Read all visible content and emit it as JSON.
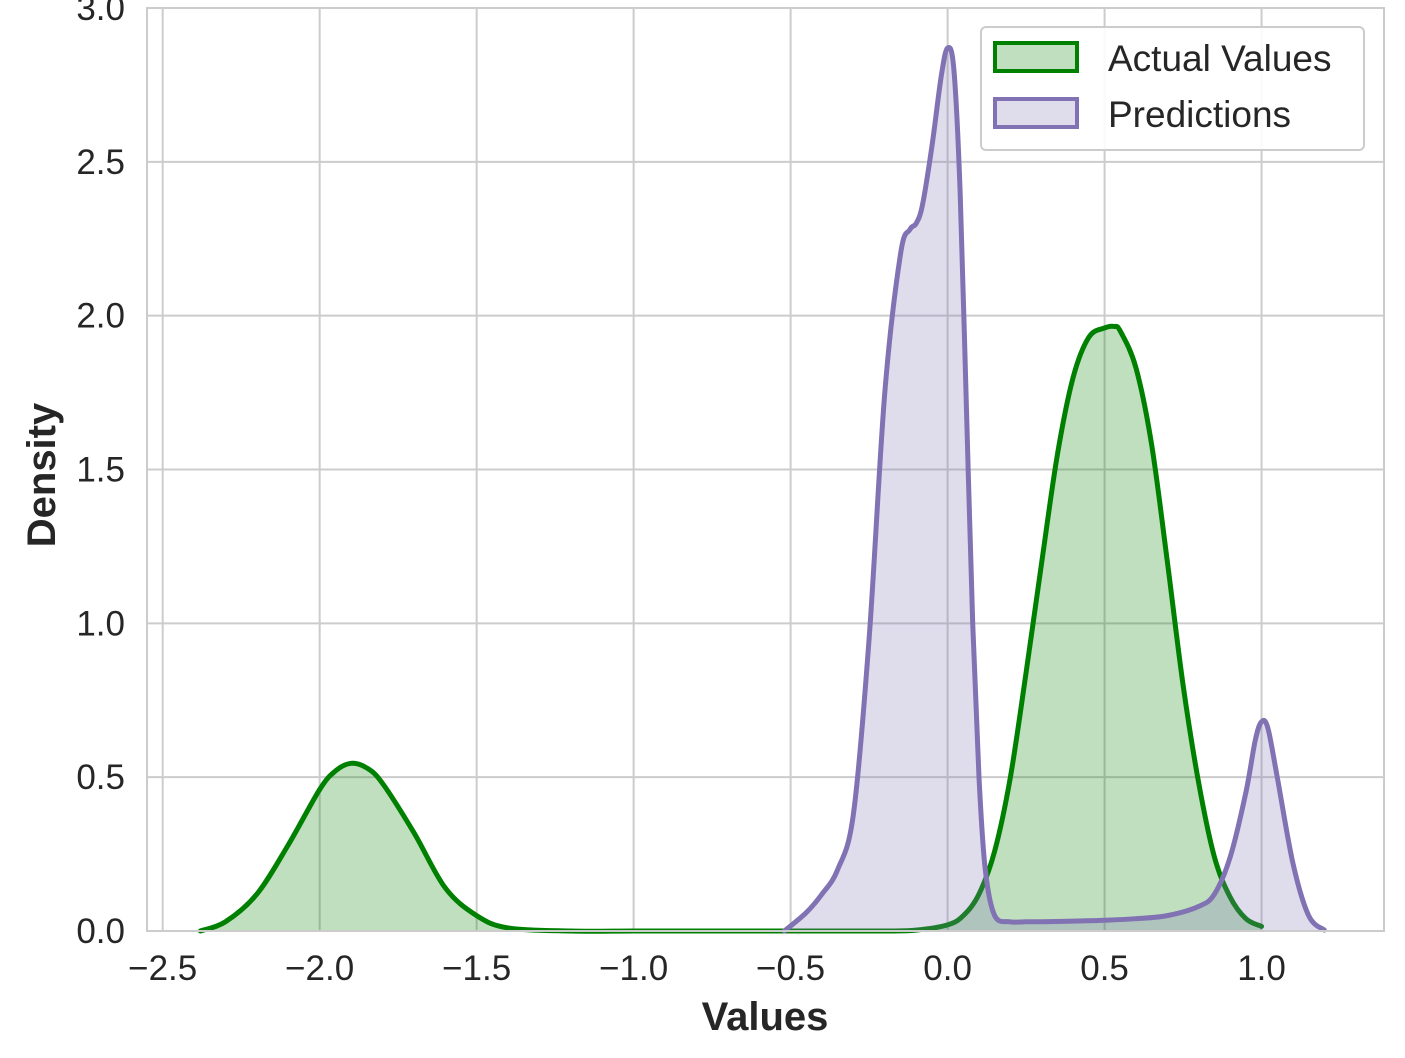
{
  "chart_data": {
    "type": "area",
    "title": "",
    "xlabel": "Values",
    "ylabel": "Density",
    "xlim": [
      -2.55,
      1.39
    ],
    "ylim": [
      0,
      3.0
    ],
    "xticks": [
      -2.5,
      -2.0,
      -1.5,
      -1.0,
      -0.5,
      0.0,
      0.5,
      1.0
    ],
    "xtick_labels": [
      "−2.5",
      "−2.0",
      "−1.5",
      "−1.0",
      "−0.5",
      "0.0",
      "0.5",
      "1.0"
    ],
    "yticks": [
      0.0,
      0.5,
      1.0,
      1.5,
      2.0,
      2.5,
      3.0
    ],
    "ytick_labels": [
      "0.0",
      "0.5",
      "1.0",
      "1.5",
      "2.0",
      "2.5",
      "3.0"
    ],
    "grid": true,
    "legend_position": "top-right",
    "series": [
      {
        "name": "Actual Values",
        "color": "#008000",
        "fill": "rgba(0,128,0,0.25)",
        "x": [
          -2.38,
          -2.3,
          -2.2,
          -2.1,
          -2.0,
          -1.95,
          -1.9,
          -1.85,
          -1.8,
          -1.7,
          -1.6,
          -1.5,
          -1.4,
          -1.2,
          -1.0,
          -0.8,
          -0.6,
          -0.4,
          -0.2,
          -0.1,
          0.0,
          0.05,
          0.1,
          0.15,
          0.2,
          0.25,
          0.3,
          0.35,
          0.4,
          0.45,
          0.5,
          0.53,
          0.55,
          0.6,
          0.65,
          0.7,
          0.75,
          0.8,
          0.85,
          0.9,
          0.95,
          1.0
        ],
        "y": [
          0.0,
          0.03,
          0.12,
          0.28,
          0.46,
          0.52,
          0.545,
          0.53,
          0.48,
          0.32,
          0.14,
          0.05,
          0.01,
          0.0,
          0.0,
          0.0,
          0.0,
          0.0,
          0.0,
          0.003,
          0.02,
          0.05,
          0.12,
          0.26,
          0.5,
          0.84,
          1.2,
          1.55,
          1.8,
          1.93,
          1.96,
          1.965,
          1.95,
          1.83,
          1.58,
          1.2,
          0.8,
          0.48,
          0.24,
          0.11,
          0.04,
          0.015
        ]
      },
      {
        "name": "Predictions",
        "color": "#8172B3",
        "fill": "rgba(129,114,179,0.25)",
        "x": [
          -0.52,
          -0.45,
          -0.4,
          -0.35,
          -0.3,
          -0.25,
          -0.2,
          -0.15,
          -0.12,
          -0.1,
          -0.08,
          -0.05,
          -0.02,
          0.0,
          0.02,
          0.04,
          0.06,
          0.08,
          0.1,
          0.12,
          0.15,
          0.2,
          0.25,
          0.3,
          0.4,
          0.5,
          0.6,
          0.7,
          0.8,
          0.85,
          0.9,
          0.95,
          0.98,
          1.0,
          1.02,
          1.05,
          1.1,
          1.15,
          1.2
        ],
        "y": [
          0.0,
          0.06,
          0.12,
          0.2,
          0.38,
          0.95,
          1.75,
          2.2,
          2.28,
          2.3,
          2.36,
          2.55,
          2.78,
          2.87,
          2.8,
          2.4,
          1.7,
          1.0,
          0.5,
          0.2,
          0.05,
          0.03,
          0.03,
          0.03,
          0.032,
          0.035,
          0.04,
          0.05,
          0.08,
          0.12,
          0.24,
          0.45,
          0.62,
          0.68,
          0.66,
          0.5,
          0.22,
          0.05,
          0.003
        ]
      }
    ]
  }
}
